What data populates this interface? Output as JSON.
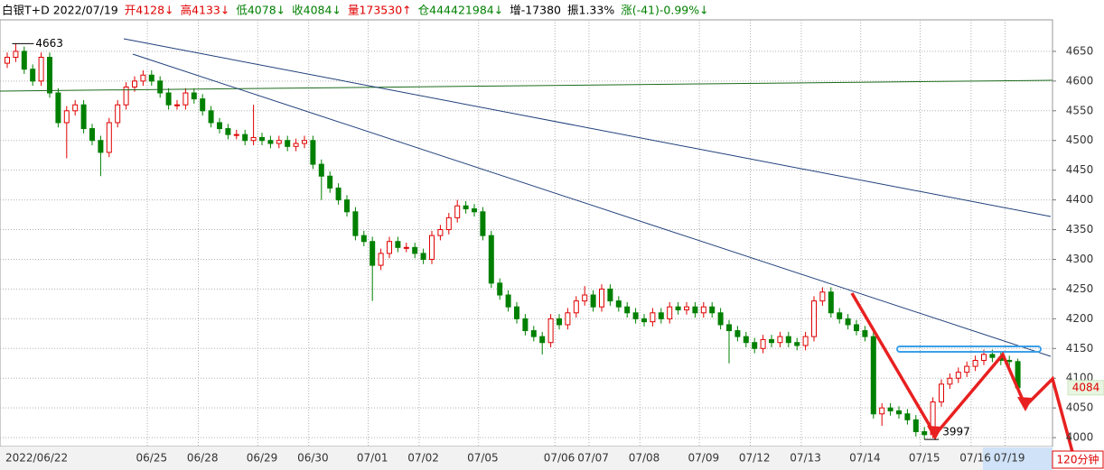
{
  "chart_data": {
    "type": "candlestick",
    "header": [
      {
        "text": "白银T+D 2022/07/19",
        "color": "#000000"
      },
      {
        "text": "开4128↓",
        "color": "#e00000"
      },
      {
        "text": "高4133↓",
        "color": "#e00000"
      },
      {
        "text": "低4078↓",
        "color": "#008000"
      },
      {
        "text": "收4084↓",
        "color": "#008000"
      },
      {
        "text": "量173530↑",
        "color": "#e00000"
      },
      {
        "text": "仓444421984↓",
        "color": "#008000"
      },
      {
        "text": "增-17380",
        "color": "#000000"
      },
      {
        "text": "振1.33%",
        "color": "#000000"
      },
      {
        "text": "涨(-41)-0.99%↓",
        "color": "#008000"
      }
    ],
    "period": "120分钟",
    "categories": [
      "2022/06/22",
      null,
      null,
      null,
      null,
      null,
      null,
      null,
      null,
      null,
      null,
      null,
      null,
      null,
      null,
      null,
      null,
      "06/25",
      null,
      null,
      null,
      null,
      null,
      "06/28",
      null,
      null,
      null,
      null,
      null,
      null,
      "06/29",
      null,
      null,
      null,
      null,
      null,
      "06/30",
      null,
      null,
      null,
      null,
      null,
      null,
      "07/01",
      null,
      null,
      null,
      null,
      null,
      "07/02",
      null,
      null,
      null,
      null,
      null,
      null,
      "07/05",
      null,
      null,
      null,
      null,
      null,
      null,
      null,
      null,
      "07/06",
      null,
      null,
      null,
      "07/07",
      null,
      null,
      null,
      null,
      null,
      "07/08",
      null,
      null,
      null,
      null,
      null,
      null,
      "07/09",
      null,
      null,
      null,
      null,
      null,
      "07/12",
      null,
      null,
      null,
      null,
      null,
      "07/13",
      null,
      null,
      null,
      null,
      null,
      null,
      "07/14",
      null,
      null,
      null,
      null,
      null,
      null,
      "07/15",
      null,
      null,
      null,
      null,
      null,
      "07/16",
      null,
      null,
      null,
      "07/19",
      null
    ],
    "open": [
      4630,
      4640,
      4650,
      4620,
      4600,
      4640,
      4580,
      4530,
      4550,
      4560,
      4520,
      4500,
      4480,
      4530,
      4560,
      4590,
      4600,
      4610,
      4600,
      4580,
      4560,
      4560,
      4580,
      4570,
      4550,
      4530,
      4520,
      4510,
      4510,
      4500,
      4505,
      4500,
      4495,
      4500,
      4490,
      4495,
      4500,
      4460,
      4440,
      4420,
      4400,
      4380,
      4340,
      4330,
      4290,
      4310,
      4330,
      4320,
      4320,
      4310,
      4300,
      4340,
      4350,
      4370,
      4390,
      4385,
      4380,
      4340,
      4260,
      4240,
      4220,
      4200,
      4180,
      4170,
      4160,
      4200,
      4190,
      4210,
      4230,
      4240,
      4220,
      4250,
      4230,
      4220,
      4210,
      4200,
      4195,
      4210,
      4200,
      4220,
      4215,
      4220,
      4210,
      4220,
      4210,
      4190,
      4180,
      4170,
      4160,
      4150,
      4165,
      4160,
      4170,
      4160,
      4155,
      4170,
      4230,
      4245,
      4210,
      4200,
      4190,
      4180,
      4170,
      4040,
      4050,
      4045,
      4040,
      4030,
      4010,
      4005,
      4060,
      4090,
      4100,
      4110,
      4120,
      4130,
      4140,
      4135,
      4130,
      4128
    ],
    "high": [
      4648,
      4663,
      4658,
      4628,
      4648,
      4648,
      4588,
      4558,
      4568,
      4568,
      4528,
      4508,
      4538,
      4568,
      4598,
      4608,
      4618,
      4618,
      4608,
      4588,
      4568,
      4588,
      4588,
      4578,
      4558,
      4538,
      4528,
      4518,
      4518,
      4560,
      4513,
      4508,
      4508,
      4508,
      4503,
      4508,
      4508,
      4468,
      4448,
      4428,
      4408,
      4388,
      4348,
      4338,
      4318,
      4338,
      4338,
      4328,
      4328,
      4318,
      4348,
      4358,
      4378,
      4400,
      4398,
      4393,
      4388,
      4348,
      4268,
      4248,
      4228,
      4208,
      4188,
      4178,
      4208,
      4208,
      4218,
      4238,
      4255,
      4248,
      4258,
      4258,
      4238,
      4228,
      4218,
      4208,
      4218,
      4218,
      4228,
      4228,
      4228,
      4228,
      4228,
      4228,
      4218,
      4198,
      4188,
      4178,
      4168,
      4173,
      4173,
      4178,
      4178,
      4168,
      4178,
      4238,
      4253,
      4253,
      4218,
      4208,
      4198,
      4188,
      4178,
      4058,
      4058,
      4053,
      4048,
      4038,
      4018,
      4068,
      4098,
      4108,
      4118,
      4128,
      4138,
      4148,
      4148,
      4143,
      4138,
      4133
    ],
    "low": [
      4622,
      4632,
      4612,
      4592,
      4592,
      4572,
      4522,
      4470,
      4542,
      4512,
      4492,
      4440,
      4472,
      4522,
      4552,
      4582,
      4592,
      4592,
      4572,
      4552,
      4552,
      4552,
      4562,
      4542,
      4522,
      4512,
      4502,
      4502,
      4492,
      4492,
      4492,
      4487,
      4487,
      4482,
      4482,
      4487,
      4452,
      4400,
      4412,
      4392,
      4372,
      4332,
      4322,
      4230,
      4282,
      4302,
      4312,
      4312,
      4302,
      4292,
      4292,
      4332,
      4342,
      4362,
      4377,
      4372,
      4332,
      4252,
      4232,
      4212,
      4192,
      4172,
      4162,
      4140,
      4152,
      4182,
      4182,
      4202,
      4222,
      4212,
      4212,
      4222,
      4212,
      4202,
      4192,
      4187,
      4187,
      4192,
      4192,
      4207,
      4207,
      4202,
      4202,
      4202,
      4182,
      4125,
      4162,
      4152,
      4142,
      4142,
      4152,
      4152,
      4152,
      4147,
      4147,
      4162,
      4222,
      4202,
      4192,
      4182,
      4172,
      4162,
      4032,
      4020,
      4037,
      4032,
      4022,
      4002,
      3997,
      3999,
      4052,
      4082,
      4092,
      4102,
      4112,
      4122,
      4127,
      4122,
      4120,
      4078
    ],
    "close": [
      4640,
      4650,
      4620,
      4600,
      4640,
      4580,
      4530,
      4550,
      4560,
      4520,
      4500,
      4480,
      4530,
      4560,
      4590,
      4600,
      4610,
      4600,
      4580,
      4560,
      4560,
      4580,
      4570,
      4550,
      4530,
      4520,
      4510,
      4510,
      4500,
      4505,
      4500,
      4495,
      4500,
      4490,
      4495,
      4500,
      4460,
      4440,
      4420,
      4400,
      4380,
      4340,
      4330,
      4290,
      4310,
      4330,
      4320,
      4320,
      4310,
      4300,
      4340,
      4350,
      4370,
      4390,
      4385,
      4380,
      4340,
      4260,
      4240,
      4220,
      4200,
      4180,
      4170,
      4160,
      4200,
      4190,
      4210,
      4230,
      4240,
      4220,
      4250,
      4230,
      4220,
      4210,
      4200,
      4195,
      4210,
      4200,
      4220,
      4215,
      4220,
      4210,
      4220,
      4210,
      4190,
      4180,
      4170,
      4160,
      4150,
      4165,
      4160,
      4170,
      4160,
      4155,
      4170,
      4230,
      4245,
      4210,
      4200,
      4190,
      4180,
      4170,
      4040,
      4050,
      4045,
      4040,
      4030,
      4010,
      4005,
      4060,
      4090,
      4100,
      4110,
      4120,
      4130,
      4140,
      4135,
      4130,
      4128,
      4084
    ],
    "up_color": "#e00000",
    "down_color": "#008000",
    "high_mark": 4663,
    "low_mark": 3997,
    "last_price": 4084,
    "ylim": [
      3985,
      4703
    ],
    "yticks": [
      4000,
      4050,
      4100,
      4150,
      4200,
      4250,
      4300,
      4350,
      4400,
      4450,
      4500,
      4550,
      4600,
      4650
    ],
    "grid": true
  }
}
